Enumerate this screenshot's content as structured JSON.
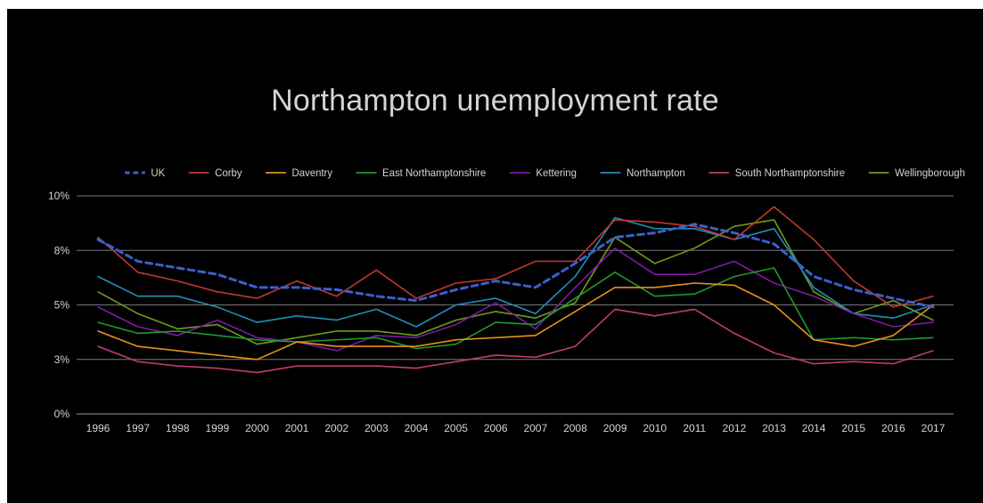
{
  "colors": {
    "background": "#000000",
    "text": "#d4d4d4",
    "gridline": "#777777"
  },
  "chart_data": {
    "type": "line",
    "title": "Northampton unemployment rate",
    "legend_position": "top",
    "grid": true,
    "ylim": [
      0,
      10
    ],
    "y_ticks": [
      {
        "value": 0,
        "label": "0%"
      },
      {
        "value": 2.5,
        "label": "3%"
      },
      {
        "value": 5,
        "label": "5%"
      },
      {
        "value": 7.5,
        "label": "8%"
      },
      {
        "value": 10,
        "label": "10%"
      }
    ],
    "x": [
      "1996",
      "1997",
      "1998",
      "1999",
      "2000",
      "2001",
      "2002",
      "2003",
      "2004",
      "2005",
      "2006",
      "2007",
      "2008",
      "2009",
      "2010",
      "2011",
      "2012",
      "2013",
      "2014",
      "2015",
      "2016",
      "2017"
    ],
    "series": [
      {
        "name": "UK",
        "color": "#3d5fcb",
        "dashed": true,
        "values": [
          8.0,
          7.0,
          6.7,
          6.4,
          5.8,
          5.8,
          5.7,
          5.4,
          5.2,
          5.7,
          6.1,
          5.8,
          6.9,
          8.1,
          8.3,
          8.7,
          8.3,
          7.8,
          6.3,
          5.7,
          5.3,
          4.9
        ]
      },
      {
        "name": "Corby",
        "color": "#c0392b",
        "values": [
          8.1,
          6.5,
          6.1,
          5.6,
          5.3,
          6.1,
          5.4,
          6.6,
          5.3,
          6.0,
          6.2,
          7.0,
          7.0,
          8.9,
          8.8,
          8.6,
          8.0,
          9.5,
          8.0,
          6.1,
          4.9,
          5.4
        ]
      },
      {
        "name": "Daventry",
        "color": "#e69118",
        "values": [
          3.8,
          3.1,
          2.9,
          2.7,
          2.5,
          3.3,
          3.1,
          3.1,
          3.1,
          3.4,
          3.5,
          3.6,
          4.7,
          5.8,
          5.8,
          6.0,
          5.9,
          5.0,
          3.4,
          3.1,
          3.6,
          5.0
        ]
      },
      {
        "name": "East Northamptonshire",
        "color": "#1e9a2d",
        "values": [
          4.2,
          3.7,
          3.8,
          3.6,
          3.4,
          3.3,
          3.4,
          3.5,
          3.0,
          3.2,
          4.2,
          4.1,
          5.3,
          6.5,
          5.4,
          5.5,
          6.3,
          6.7,
          3.4,
          3.5,
          3.4,
          3.5
        ]
      },
      {
        "name": "Kettering",
        "color": "#7c1aa3",
        "values": [
          4.9,
          4.0,
          3.6,
          4.3,
          3.5,
          3.3,
          2.9,
          3.6,
          3.5,
          4.1,
          5.1,
          3.9,
          5.8,
          7.6,
          6.4,
          6.4,
          7.0,
          6.0,
          5.4,
          4.6,
          4.0,
          4.2
        ]
      },
      {
        "name": "Northampton",
        "color": "#1f8fb8",
        "values": [
          6.3,
          5.4,
          5.4,
          4.9,
          4.2,
          4.5,
          4.3,
          4.8,
          4.0,
          5.0,
          5.3,
          4.6,
          6.3,
          9.0,
          8.5,
          8.5,
          8.0,
          8.5,
          5.8,
          4.6,
          4.4,
          5.0
        ]
      },
      {
        "name": "South Northamptonshire",
        "color": "#c23b72",
        "values": [
          3.1,
          2.4,
          2.2,
          2.1,
          1.9,
          2.2,
          2.2,
          2.2,
          2.1,
          2.4,
          2.7,
          2.6,
          3.1,
          4.8,
          4.5,
          4.8,
          3.7,
          2.8,
          2.3,
          2.4,
          2.3,
          2.9
        ]
      },
      {
        "name": "Wellingborough",
        "color": "#6e9c1a",
        "values": [
          5.6,
          4.6,
          3.9,
          4.1,
          3.2,
          3.5,
          3.8,
          3.8,
          3.6,
          4.3,
          4.7,
          4.4,
          5.1,
          8.1,
          6.9,
          7.6,
          8.6,
          8.9,
          5.6,
          4.6,
          5.2,
          4.3
        ]
      }
    ]
  }
}
